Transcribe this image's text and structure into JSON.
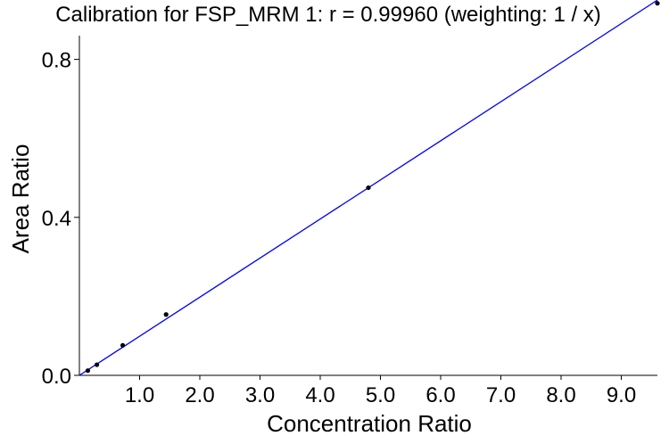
{
  "chart_data": {
    "type": "scatter",
    "title": "Calibration for FSP_MRM 1: r = 0.99960  (weighting: 1 / x)",
    "xlabel": "Concentration Ratio",
    "ylabel": "Area Ratio",
    "xlim": [
      0,
      9.6
    ],
    "ylim": [
      0,
      0.86
    ],
    "x_ticks": [
      1.0,
      2.0,
      3.0,
      4.0,
      5.0,
      6.0,
      7.0,
      8.0,
      9.0
    ],
    "x_tick_labels": [
      "1.0",
      "2.0",
      "3.0",
      "4.0",
      "5.0",
      "6.0",
      "7.0",
      "8.0",
      "9.0"
    ],
    "y_ticks": [
      0.0,
      0.4,
      0.8
    ],
    "y_tick_labels": [
      "0.0",
      "0.4",
      "0.8"
    ],
    "grid": false,
    "points_color": "#000000",
    "fit_color": "#0000ff",
    "points": [
      {
        "x": 0.14,
        "y": 0.012
      },
      {
        "x": 0.29,
        "y": 0.027
      },
      {
        "x": 0.72,
        "y": 0.076
      },
      {
        "x": 1.44,
        "y": 0.154
      },
      {
        "x": 4.8,
        "y": 0.475
      },
      {
        "x": 9.6,
        "y": 0.942
      }
    ],
    "fit_line": {
      "x": [
        0,
        9.6
      ],
      "y": [
        0.0,
        0.95
      ]
    }
  }
}
